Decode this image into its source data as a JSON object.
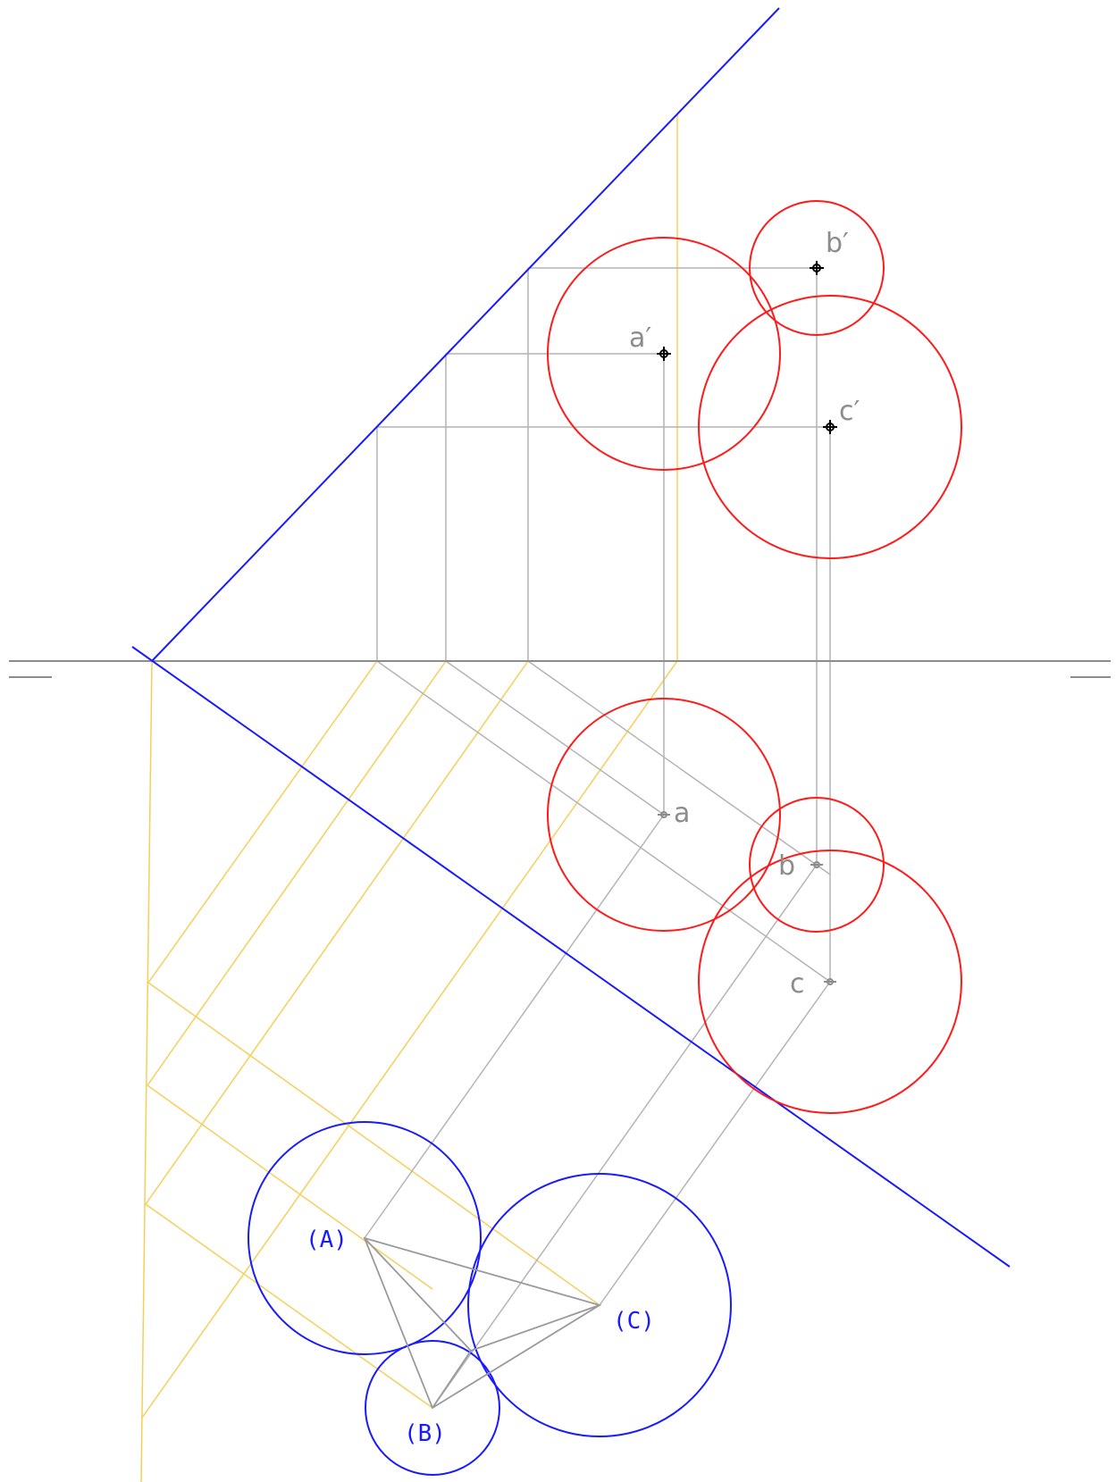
{
  "colors": {
    "background": "#ffffff",
    "construction": "#b4b4b4",
    "ground_line": "#8c8c8c",
    "folding_line": "#1a1aff",
    "reference_yellow": "#f5cf5a",
    "circle_red": "#ff1a1a",
    "circle_blue": "#1a1aff",
    "triangle": "#9a9a9a"
  },
  "labels": {
    "a_prime": "a′",
    "b_prime": "b′",
    "c_prime": "c′",
    "a": "a",
    "b": "b",
    "c": "c",
    "A": "(A)",
    "B": "(B)",
    "C": "(C)"
  }
}
